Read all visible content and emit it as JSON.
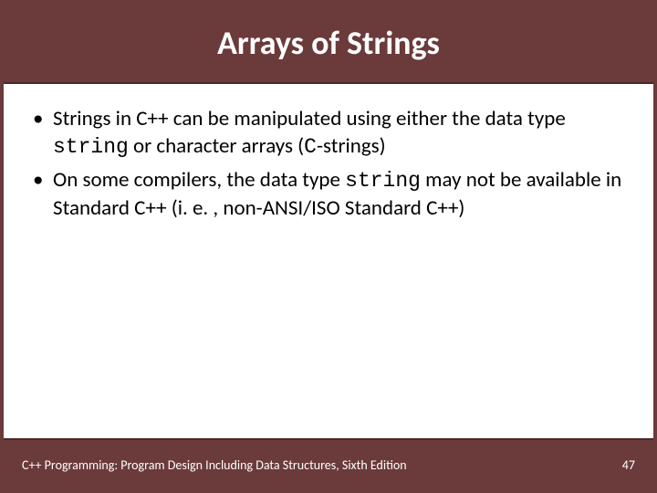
{
  "colors": {
    "header_bg": "#6b3a3a",
    "body_bg": "#ffffff",
    "title_color": "#ffffff",
    "text_color": "#000000",
    "footer_text": "#ffffff",
    "border_dark": "#4a2828"
  },
  "typography": {
    "title_fontsize": 36,
    "title_weight": "bold",
    "body_fontsize": 23,
    "footer_fontsize": 14,
    "code_family": "Courier New"
  },
  "title": "Arrays of Strings",
  "bullets": [
    {
      "segments": [
        {
          "text": "Strings in C++ can be manipulated using either the data type ",
          "code": false
        },
        {
          "text": "string",
          "code": true
        },
        {
          "text": " or character arrays (",
          "code": false
        },
        {
          "text": "C",
          "code": true
        },
        {
          "text": "-strings)",
          "code": false
        }
      ]
    },
    {
      "segments": [
        {
          "text": "On some compilers, the data type ",
          "code": false
        },
        {
          "text": "string",
          "code": true
        },
        {
          "text": " may not be available in Standard C++ (i. e. , non-ANSI/ISO Standard C++)",
          "code": false
        }
      ]
    }
  ],
  "footer": {
    "text": "C++ Programming: Program Design Including Data Structures, Sixth Edition",
    "page": "47"
  }
}
